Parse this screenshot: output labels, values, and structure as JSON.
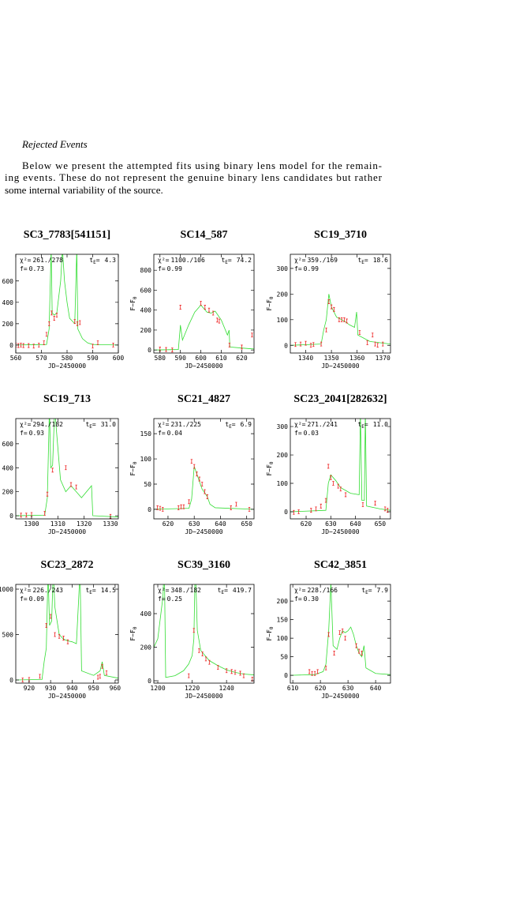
{
  "heading": "Rejected Events",
  "paragraph": [
    "Below we present the attempted fits using binary lens model for the remain-",
    "ing events. These do not represent the genuine binary lens candidates but rather",
    "some internal variability of the source."
  ],
  "plot_text": {
    "chi2": "χ²=",
    "t": "t",
    "E": "E",
    "eq": "=",
    "f": "f=",
    "xlabel": "JD−2450000",
    "F": "F−F",
    "sub0": "0"
  },
  "chart_data": [
    {
      "type": "lightcurve",
      "title": "SC3_7783[541151]",
      "chi2": "261./278",
      "tE": "4.3",
      "f": "0.73",
      "ylabel": false,
      "xlim": [
        560,
        600
      ],
      "ylim": [
        -75,
        850
      ],
      "xticks": [
        560,
        570,
        580,
        590,
        600
      ],
      "yticks": [
        0,
        200,
        400,
        600
      ],
      "model": {
        "color": "#33dd33",
        "x": [
          560,
          572,
          573,
          573.8,
          574.2,
          575,
          576,
          577.5,
          578.2,
          579,
          580,
          581,
          583,
          583.8,
          584.2,
          586,
          588,
          590,
          600
        ],
        "y": [
          0,
          5,
          150,
          900,
          300,
          280,
          300,
          600,
          900,
          600,
          400,
          250,
          200,
          900,
          150,
          60,
          20,
          5,
          0
        ]
      },
      "points": {
        "color": "#ee2222",
        "x": [
          560,
          561,
          562,
          563,
          565,
          567,
          569,
          571,
          572,
          573,
          574,
          575,
          576,
          583,
          584,
          585,
          590,
          592,
          598
        ],
        "y": [
          0,
          -5,
          0,
          -5,
          -5,
          -10,
          0,
          20,
          100,
          200,
          300,
          250,
          280,
          220,
          200,
          210,
          -10,
          20,
          0
        ]
      }
    },
    {
      "type": "lightcurve",
      "title": "SC14_587",
      "chi2": "1100./106",
      "tE": "74.2",
      "f": "0.99",
      "ylabel": true,
      "xlim": [
        577,
        626
      ],
      "ylim": [
        -30,
        960
      ],
      "xticks": [
        580,
        590,
        600,
        610,
        620
      ],
      "yticks": [
        0,
        200,
        400,
        600,
        800
      ],
      "model": {
        "color": "#33dd33",
        "x": [
          577,
          589,
          590,
          591,
          594,
          597,
          600,
          603,
          605,
          607,
          610,
          613,
          613.8,
          614.2,
          620,
          626
        ],
        "y": [
          0,
          5,
          250,
          100,
          250,
          380,
          450,
          380,
          370,
          390,
          300,
          150,
          200,
          30,
          20,
          10
        ]
      },
      "points": {
        "color": "#ee2222",
        "x": [
          580,
          583,
          586,
          590,
          600,
          602,
          604,
          606,
          608,
          609,
          614,
          620,
          625
        ],
        "y": [
          10,
          5,
          0,
          430,
          470,
          430,
          400,
          370,
          300,
          290,
          50,
          30,
          150
        ]
      }
    },
    {
      "type": "lightcurve",
      "title": "SC19_3710",
      "chi2": "359./169",
      "tE": "18.6",
      "f": "0.99",
      "ylabel": true,
      "xlim": [
        1334,
        1373
      ],
      "ylim": [
        -30,
        355
      ],
      "xticks": [
        1340,
        1350,
        1360,
        1370
      ],
      "yticks": [
        0,
        100,
        200,
        300
      ],
      "model": {
        "color": "#33dd33",
        "x": [
          1334,
          1346,
          1347,
          1348,
          1349,
          1350,
          1352,
          1355,
          1357,
          1359,
          1359.8,
          1360.3,
          1365,
          1373
        ],
        "y": [
          0,
          5,
          60,
          100,
          200,
          150,
          110,
          95,
          80,
          70,
          130,
          40,
          15,
          5
        ]
      },
      "points": {
        "color": "#ee2222",
        "x": [
          1336,
          1338,
          1340,
          1342,
          1343,
          1346,
          1348,
          1349,
          1350,
          1351,
          1353,
          1354,
          1355,
          1356,
          1361,
          1364,
          1366,
          1367,
          1368,
          1370
        ],
        "y": [
          3,
          5,
          8,
          0,
          3,
          5,
          60,
          170,
          150,
          140,
          100,
          100,
          100,
          95,
          50,
          10,
          40,
          5,
          0,
          5
        ]
      }
    },
    {
      "type": "lightcurve",
      "title": "SC19_713",
      "chi2": "294./182",
      "tE": "31.0",
      "f": "0.93",
      "ylabel": false,
      "xlim": [
        1294,
        1333
      ],
      "ylim": [
        -26,
        810
      ],
      "xticks": [
        1300,
        1310,
        1320,
        1330
      ],
      "yticks": [
        0,
        200,
        400,
        600
      ],
      "model": {
        "color": "#33dd33",
        "x": [
          1294,
          1305,
          1306,
          1306.8,
          1307.3,
          1308,
          1308.8,
          1309.5,
          1311,
          1313,
          1315,
          1317,
          1319,
          1322.8,
          1323.3,
          1333
        ],
        "y": [
          0,
          5,
          150,
          900,
          400,
          420,
          900,
          700,
          300,
          200,
          250,
          200,
          150,
          250,
          0,
          -10
        ]
      },
      "points": {
        "color": "#ee2222",
        "x": [
          1296,
          1298,
          1300,
          1305,
          1306,
          1308,
          1313,
          1315,
          1317,
          1330
        ],
        "y": [
          5,
          5,
          10,
          20,
          180,
          380,
          400,
          260,
          240,
          -5
        ]
      }
    },
    {
      "type": "lightcurve",
      "title": "SC21_4827",
      "chi2": "231./225",
      "tE": "6.9",
      "f": "0.04",
      "ylabel": true,
      "xlim": [
        614.6,
        652.8
      ],
      "ylim": [
        -19,
        180
      ],
      "xticks": [
        620,
        630,
        640,
        650
      ],
      "yticks": [
        0,
        50,
        100,
        150
      ],
      "model": {
        "color": "#33dd33",
        "x": [
          614.6,
          628,
          629,
          630,
          631,
          632,
          633,
          635,
          636,
          638,
          652.8
        ],
        "y": [
          0,
          2,
          20,
          85,
          70,
          55,
          40,
          25,
          10,
          3,
          0
        ]
      },
      "points": {
        "color": "#ee2222",
        "x": [
          616,
          617,
          618,
          624,
          625,
          626,
          628,
          629,
          630,
          631,
          632,
          633,
          634,
          635,
          644,
          646,
          651
        ],
        "y": [
          3,
          2,
          0,
          3,
          5,
          5,
          15,
          95,
          85,
          70,
          60,
          50,
          35,
          25,
          3,
          10,
          0
        ]
      }
    },
    {
      "type": "lightcurve",
      "title": "SC23_2041[282632]",
      "chi2": "271./241",
      "tE": "11.0",
      "f": "0.03",
      "ylabel": true,
      "xlim": [
        613.6,
        654.2
      ],
      "ylim": [
        -25,
        328
      ],
      "xticks": [
        620,
        630,
        640,
        650
      ],
      "yticks": [
        0,
        100,
        200,
        300
      ],
      "model": {
        "color": "#33dd33",
        "x": [
          613.6,
          628,
          629,
          630,
          632,
          634,
          636,
          638,
          641.5,
          642,
          642.6,
          643.6,
          644,
          644.5,
          650,
          654.2
        ],
        "y": [
          0,
          5,
          100,
          130,
          110,
          85,
          75,
          65,
          60,
          350,
          40,
          40,
          350,
          20,
          10,
          5
        ]
      },
      "points": {
        "color": "#ee2222",
        "x": [
          615,
          617,
          622,
          624,
          626,
          628,
          629,
          630,
          631,
          633,
          634,
          636,
          643,
          648,
          652,
          653
        ],
        "y": [
          -2,
          0,
          5,
          10,
          20,
          40,
          160,
          120,
          100,
          90,
          80,
          60,
          25,
          30,
          10,
          5
        ]
      }
    },
    {
      "type": "lightcurve",
      "title": "SC23_2872",
      "chi2": "226./243",
      "tE": "14.5",
      "f": "0.09",
      "ylabel": false,
      "xlim": [
        913.8,
        961.5
      ],
      "ylim": [
        -35,
        1052
      ],
      "xticks": [
        920,
        930,
        940,
        950,
        960
      ],
      "yticks": [
        0,
        500,
        1000
      ],
      "model": {
        "color": "#33dd33",
        "x": [
          913.8,
          926,
          927,
          928,
          928.8,
          929.5,
          930.5,
          931.2,
          932,
          934,
          936,
          938,
          940,
          942,
          943.7,
          944.4,
          950,
          953,
          954,
          955,
          961.5
        ],
        "y": [
          0,
          5,
          200,
          350,
          1200,
          600,
          650,
          1200,
          800,
          500,
          450,
          430,
          420,
          400,
          1200,
          100,
          50,
          100,
          200,
          50,
          20
        ]
      },
      "points": {
        "color": "#ee2222",
        "x": [
          917,
          920,
          925,
          928,
          930,
          932,
          934,
          936,
          938,
          952,
          953,
          954,
          956
        ],
        "y": [
          0,
          5,
          40,
          600,
          700,
          500,
          480,
          460,
          420,
          30,
          40,
          150,
          80
        ]
      }
    },
    {
      "type": "lightcurve",
      "title": "SC39_3160",
      "chi2": "348./182",
      "tE": "419.7",
      "f": "0.25",
      "ylabel": true,
      "xlim": [
        1197.7,
        1256
      ],
      "ylim": [
        -14,
        574
      ],
      "xticks": [
        1200,
        1220,
        1240
      ],
      "yticks": [
        0,
        200,
        400
      ],
      "model": {
        "color": "#33dd33",
        "x": [
          1197.7,
          1200,
          1203,
          1203.8,
          1204.6,
          1210,
          1215,
          1218,
          1220,
          1221,
          1221.8,
          1223,
          1225,
          1230,
          1235,
          1240,
          1245,
          1250,
          1256
        ],
        "y": [
          200,
          250,
          500,
          700,
          20,
          30,
          60,
          100,
          150,
          250,
          700,
          300,
          180,
          120,
          90,
          65,
          50,
          40,
          35
        ]
      },
      "points": {
        "color": "#ee2222",
        "x": [
          1218,
          1221,
          1224,
          1226,
          1228,
          1230,
          1235,
          1240,
          1243,
          1245,
          1248,
          1250,
          1255
        ],
        "y": [
          30,
          300,
          180,
          160,
          130,
          110,
          80,
          60,
          55,
          50,
          45,
          30,
          10
        ]
      }
    },
    {
      "type": "lightcurve",
      "title": "SC42_3851",
      "chi2": "228./166",
      "tE": "7.9",
      "f": "0.30",
      "ylabel": true,
      "xlim": [
        609.1,
        645.4
      ],
      "ylim": [
        -21,
        245
      ],
      "xticks": [
        610,
        620,
        630,
        640
      ],
      "yticks": [
        0,
        50,
        100,
        150,
        200
      ],
      "model": {
        "color": "#33dd33",
        "x": [
          609.1,
          618,
          621,
          622,
          623,
          623.8,
          624.6,
          626,
          627,
          628,
          629,
          630,
          631,
          632,
          633,
          634,
          635,
          635.8,
          636.5,
          640,
          645.4
        ],
        "y": [
          0,
          2,
          10,
          30,
          120,
          250,
          80,
          70,
          100,
          120,
          115,
          120,
          130,
          110,
          80,
          60,
          50,
          80,
          20,
          5,
          2
        ]
      },
      "points": {
        "color": "#ee2222",
        "x": [
          616,
          617,
          618,
          619,
          622,
          623,
          625,
          627,
          628,
          629,
          633,
          634,
          635
        ],
        "y": [
          10,
          5,
          5,
          10,
          20,
          110,
          60,
          115,
          120,
          100,
          80,
          65,
          60
        ]
      }
    }
  ]
}
